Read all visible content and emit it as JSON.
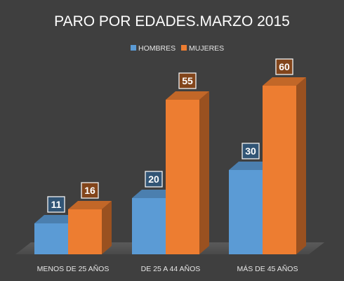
{
  "chart_data": {
    "type": "bar",
    "title": "PARO POR EDADES.MARZO 2015",
    "categories": [
      "MENOS DE 25 AÑOS",
      "DE 25 A 44 AÑOS",
      "MÁS DE 45 AÑOS"
    ],
    "series": [
      {
        "name": "HOMBRES",
        "values": [
          11,
          20,
          30
        ],
        "color": "#5b9bd5"
      },
      {
        "name": "MUJERES",
        "values": [
          16,
          55,
          60
        ],
        "color": "#ed7d31"
      }
    ],
    "ylim": [
      0,
      70
    ],
    "grid": false,
    "legend_position": "top-center",
    "three_d": true
  }
}
